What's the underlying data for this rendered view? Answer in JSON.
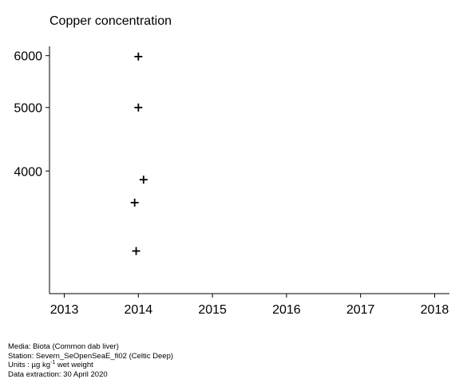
{
  "chart_data": {
    "type": "scatter",
    "title": "Copper concentration",
    "xlabel": "",
    "ylabel": "",
    "x_ticks": [
      2013,
      2014,
      2015,
      2016,
      2017,
      2018
    ],
    "y_ticks": [
      4000,
      5000,
      6000
    ],
    "xlim": [
      2012.8,
      2018.2
    ],
    "y_scale": "log",
    "ylim": [
      2600,
      6200
    ],
    "grid": false,
    "marker": "plus",
    "points": [
      {
        "x": 2014.0,
        "y": 5980
      },
      {
        "x": 2014.0,
        "y": 5000
      },
      {
        "x": 2014.07,
        "y": 3880
      },
      {
        "x": 2013.95,
        "y": 3580
      },
      {
        "x": 2013.97,
        "y": 3020
      }
    ]
  },
  "footer": {
    "media": "Media: Biota (Common dab liver)",
    "station": "Station: Severn_SeOpenSeaE_fi02 (Celtic Deep)",
    "units_prefix": "Units : µg kg",
    "units_exp": "-1",
    "units_suffix": " wet weight",
    "extraction": "Data extraction: 30 April 2020"
  }
}
